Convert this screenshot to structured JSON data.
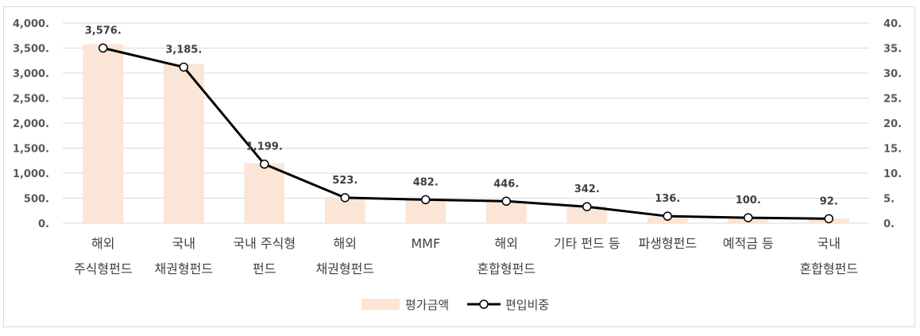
{
  "chart_data": {
    "type": "bar",
    "categories": [
      [
        "해외",
        "주식형펀드"
      ],
      [
        "국내",
        "채권형펀드"
      ],
      [
        "국내 주식형",
        "펀드"
      ],
      [
        "해외",
        "채권형펀드"
      ],
      [
        "MMF"
      ],
      [
        "해외",
        "혼합형펀드"
      ],
      [
        "기타 펀드 등"
      ],
      [
        "파생형펀드"
      ],
      [
        "예적금 등"
      ],
      [
        "국내",
        "혼합형펀드"
      ]
    ],
    "series": [
      {
        "name": "평가금액",
        "type": "bar",
        "axis": "left",
        "color": "#fbe5d6",
        "values": [
          3576,
          3185,
          1199,
          523,
          482,
          446,
          342,
          136,
          100,
          92
        ]
      },
      {
        "name": "편입비중",
        "type": "line",
        "axis": "right",
        "color": "#000000",
        "marker_fill": "#ffffff",
        "values": [
          35.0,
          31.2,
          11.8,
          5.1,
          4.7,
          4.4,
          3.3,
          1.4,
          1.1,
          0.9
        ],
        "data_labels": [
          "3,576.",
          "3,185.",
          "1,199.",
          "523.",
          "482.",
          "446.",
          "342.",
          "136.",
          "100.",
          "92."
        ]
      }
    ],
    "left_axis": {
      "ylim": [
        0,
        4000
      ],
      "ticks": [
        0,
        500,
        1000,
        1500,
        2000,
        2500,
        3000,
        3500,
        4000
      ],
      "tick_labels": [
        "0.",
        "500.",
        "1,000.",
        "1,500.",
        "2,000.",
        "2,500.",
        "3,000.",
        "3,500.",
        "4,000."
      ]
    },
    "right_axis": {
      "ylim": [
        0,
        40
      ],
      "ticks": [
        0,
        5,
        10,
        15,
        20,
        25,
        30,
        35,
        40
      ],
      "tick_labels": [
        "0.",
        "5.",
        "10.",
        "15.",
        "20.",
        "25.",
        "30.",
        "35.",
        "40."
      ]
    },
    "grid": true,
    "gridline_color": "#d9d9d9",
    "legend_position": "bottom"
  }
}
